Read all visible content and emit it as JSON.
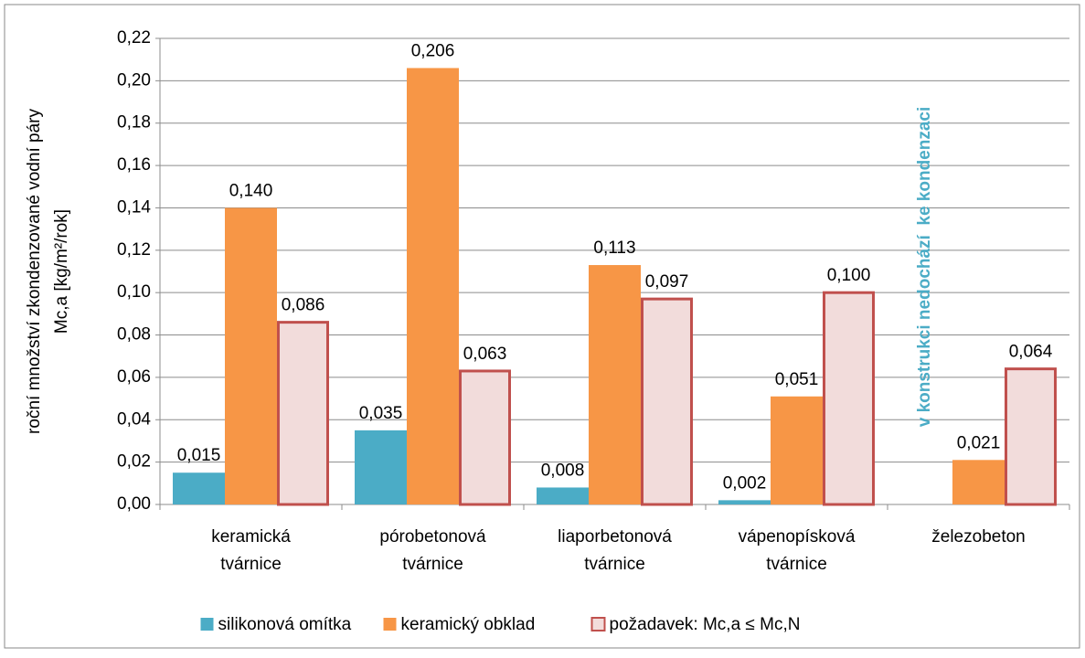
{
  "chart_data": {
    "type": "bar",
    "y_label": [
      "roční množství zkondenzované vodní páry",
      "Mc,a [kg/m²/rok]"
    ],
    "annotation": "v konstrukci nedochází  ke kondenzaci",
    "categories": [
      "keramická tvárnice",
      "pórobetonová tvárnice",
      "liaporbetonová tvárnice",
      "vápenopísková tvárnice",
      "železobeton"
    ],
    "series": [
      {
        "name": "silikonová omítka",
        "color": "#4bacc6",
        "values": [
          0.015,
          0.035,
          0.008,
          0.002,
          null
        ],
        "value_labels": [
          "0,015",
          "0,035",
          "0,008",
          "0,002",
          null
        ]
      },
      {
        "name": "keramický obklad",
        "color": "#f79646",
        "values": [
          0.14,
          0.206,
          0.113,
          0.051,
          0.021
        ],
        "value_labels": [
          "0,140",
          "0,206",
          "0,113",
          "0,051",
          "0,021"
        ]
      },
      {
        "name": "požadavek: Mc,a ≤ Mc,N",
        "color": "#f2dcdb",
        "edge_color": "#c0504d",
        "values": [
          0.086,
          0.063,
          0.097,
          0.1,
          0.064
        ],
        "value_labels": [
          "0,086",
          "0,063",
          "0,097",
          "0,100",
          "0,064"
        ]
      }
    ],
    "ylim": [
      0,
      0.22
    ],
    "yticks": [
      {
        "value": 0,
        "label": "0,00"
      },
      {
        "value": 0.02,
        "label": "0,02"
      },
      {
        "value": 0.04,
        "label": "0,04"
      },
      {
        "value": 0.06,
        "label": "0,06"
      },
      {
        "value": 0.08,
        "label": "0,08"
      },
      {
        "value": 0.1,
        "label": "0,10"
      },
      {
        "value": 0.12,
        "label": "0,12"
      },
      {
        "value": 0.14,
        "label": "0,14"
      },
      {
        "value": 0.16,
        "label": "0,16"
      },
      {
        "value": 0.18,
        "label": "0,18"
      },
      {
        "value": 0.2,
        "label": "0,20"
      },
      {
        "value": 0.22,
        "label": "0,22"
      }
    ],
    "grid": true
  }
}
